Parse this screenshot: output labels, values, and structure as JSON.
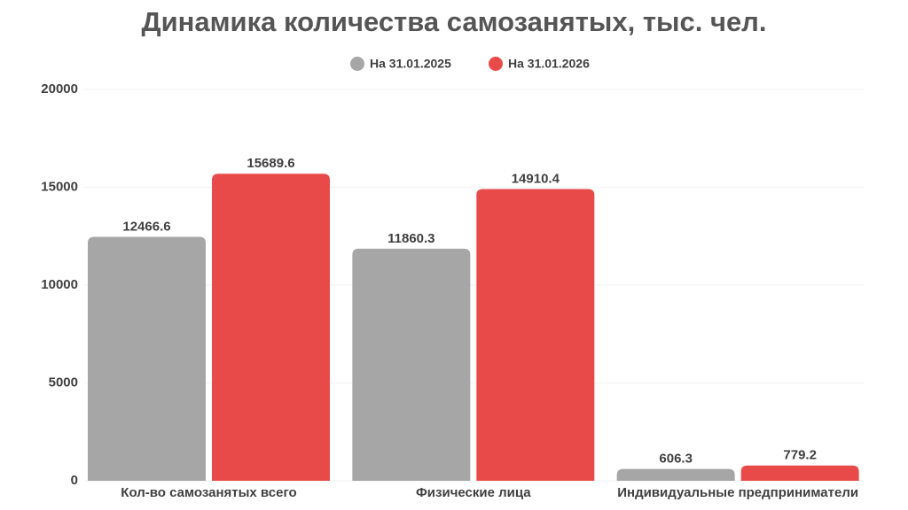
{
  "chart_data": {
    "type": "bar",
    "title": "Динамика количества самозанятых, тыс. чел.",
    "categories": [
      "Кол-во самозанятых всего",
      "Физические лица",
      "Индивидуальные предприниматели"
    ],
    "series": [
      {
        "name": "На 31.01.2025",
        "color": "#a6a6a6",
        "values": [
          12466.6,
          11860.3,
          606.3
        ]
      },
      {
        "name": "На 31.01.2026",
        "color": "#e84a4a",
        "values": [
          15689.6,
          14910.4,
          779.2
        ]
      }
    ],
    "ylim": [
      0,
      20000
    ],
    "yticks": [
      0,
      5000,
      10000,
      15000,
      20000
    ],
    "grid": true,
    "legend": "top"
  }
}
